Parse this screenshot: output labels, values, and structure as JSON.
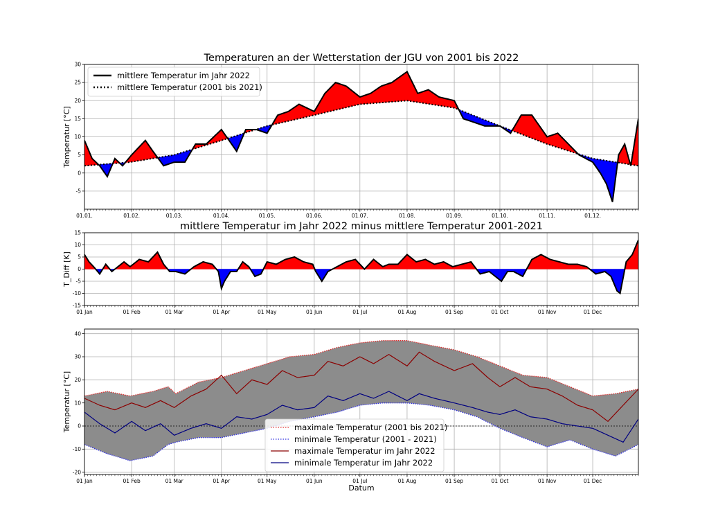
{
  "chart_data": [
    {
      "type": "line",
      "title": "Temperaturen an der Wetterstation der JGU von 2001 bis 2022",
      "ylabel": "Temperatur [°C]",
      "xlabel": "",
      "ylim": [
        -10,
        30
      ],
      "yticks": [
        -5,
        0,
        5,
        10,
        15,
        20,
        25,
        30
      ],
      "xticks": [
        {
          "day": 0,
          "label": "01.01."
        },
        {
          "day": 31,
          "label": "01.02."
        },
        {
          "day": 59,
          "label": "01.03."
        },
        {
          "day": 90,
          "label": "01.04."
        },
        {
          "day": 120,
          "label": "01.05."
        },
        {
          "day": 151,
          "label": "01.06."
        },
        {
          "day": 181,
          "label": "01.07."
        },
        {
          "day": 212,
          "label": "01.08."
        },
        {
          "day": 243,
          "label": "01.09."
        },
        {
          "day": 273,
          "label": "01.10."
        },
        {
          "day": 304,
          "label": "01.11."
        },
        {
          "day": 334,
          "label": "01.12."
        }
      ],
      "grid": true,
      "legend_position": "top-left",
      "fill_colors": {
        "above": "#ff0000",
        "below": "#0000ff"
      },
      "series": [
        {
          "name": "mittlere Temperatur im Jahr 2022",
          "style": "solid",
          "color": "#000000",
          "x": [
            0,
            5,
            10,
            15,
            20,
            25,
            31,
            40,
            45,
            52,
            59,
            66,
            73,
            80,
            90,
            100,
            106,
            113,
            120,
            127,
            134,
            141,
            151,
            158,
            165,
            172,
            181,
            188,
            195,
            202,
            212,
            219,
            226,
            233,
            243,
            249,
            256,
            263,
            273,
            280,
            287,
            294,
            304,
            311,
            318,
            325,
            334,
            339,
            343,
            347,
            351,
            355,
            359,
            364
          ],
          "y": [
            9,
            4,
            2,
            -1,
            4,
            2,
            5,
            9,
            6,
            2,
            3,
            3,
            8,
            8,
            12,
            6,
            12,
            12,
            11,
            16,
            17,
            19,
            17,
            22,
            25,
            24,
            21,
            22,
            24,
            25,
            28,
            22,
            23,
            21,
            20,
            15,
            14,
            13,
            13,
            11,
            16,
            16,
            10,
            11,
            8,
            5,
            3,
            0,
            -3,
            -8,
            5,
            8,
            2,
            15
          ]
        },
        {
          "name": "mittlere Temperatur (2001 bis 2021)",
          "style": "dotted",
          "color": "#000000",
          "x": [
            0,
            30,
            59,
            90,
            120,
            151,
            181,
            212,
            243,
            273,
            304,
            334,
            364
          ],
          "y": [
            2,
            3,
            5,
            9,
            13,
            16,
            19,
            20,
            18,
            13,
            8,
            4,
            2
          ]
        }
      ]
    },
    {
      "type": "area",
      "title": "mittlere Temperatur im Jahr 2022 minus mittlere Temperatur 2001-2021",
      "ylabel": "T_Diff [K]",
      "xlabel": "",
      "ylim": [
        -15,
        15
      ],
      "yticks": [
        -15,
        -10,
        -5,
        0,
        5,
        10,
        15
      ],
      "xticks": [
        {
          "day": 0,
          "label": "01 Jan"
        },
        {
          "day": 31,
          "label": "01 Feb"
        },
        {
          "day": 59,
          "label": "01 Mar"
        },
        {
          "day": 90,
          "label": "01 Apr"
        },
        {
          "day": 120,
          "label": "01 May"
        },
        {
          "day": 151,
          "label": "01 Jun"
        },
        {
          "day": 181,
          "label": "01 Jul"
        },
        {
          "day": 212,
          "label": "01 Aug"
        },
        {
          "day": 243,
          "label": "01 Sep"
        },
        {
          "day": 273,
          "label": "01 Oct"
        },
        {
          "day": 304,
          "label": "01 Nov"
        },
        {
          "day": 334,
          "label": "01 Dec"
        }
      ],
      "grid": true,
      "fill_colors": {
        "above": "#ff0000",
        "below": "#0000ff"
      },
      "series": [
        {
          "style": "solid",
          "color": "#000000",
          "x": [
            0,
            3,
            6,
            10,
            14,
            18,
            22,
            26,
            30,
            36,
            42,
            48,
            52,
            56,
            60,
            66,
            72,
            78,
            84,
            88,
            90,
            92,
            96,
            100,
            104,
            108,
            112,
            116,
            120,
            126,
            132,
            138,
            144,
            150,
            152,
            156,
            160,
            166,
            172,
            178,
            184,
            190,
            196,
            200,
            206,
            212,
            218,
            224,
            230,
            236,
            242,
            248,
            254,
            260,
            266,
            270,
            274,
            278,
            282,
            288,
            294,
            300,
            306,
            312,
            318,
            324,
            330,
            336,
            342,
            346,
            350,
            352,
            356,
            360,
            364
          ],
          "y": [
            6,
            3,
            1,
            -2,
            2,
            -1,
            1,
            3,
            1,
            4,
            3,
            7,
            2,
            -1,
            -1,
            -2,
            1,
            3,
            2,
            -1,
            -8,
            -5,
            -1,
            -1,
            3,
            1,
            -3,
            -2,
            3,
            2,
            4,
            5,
            3,
            2,
            -1,
            -5,
            -1,
            1,
            3,
            4,
            0,
            4,
            1,
            2,
            2,
            6,
            3,
            4,
            2,
            3,
            1,
            2,
            3,
            -2,
            -1,
            -3,
            -5,
            -1,
            -1,
            -3,
            4,
            6,
            4,
            3,
            2,
            2,
            1,
            -2,
            -1,
            -3,
            -9,
            -10,
            3,
            6,
            12
          ]
        }
      ]
    },
    {
      "type": "line",
      "title": "",
      "ylabel": "Temperatur [°C]",
      "xlabel": "Datum",
      "ylim": [
        -21,
        42
      ],
      "yticks": [
        -20,
        -10,
        0,
        10,
        20,
        30,
        40
      ],
      "xticks": [
        {
          "day": 0,
          "label": "01 Jan"
        },
        {
          "day": 31,
          "label": "01 Feb"
        },
        {
          "day": 59,
          "label": "01 Mar"
        },
        {
          "day": 90,
          "label": "01 Apr"
        },
        {
          "day": 120,
          "label": "01 May"
        },
        {
          "day": 151,
          "label": "01 Jun"
        },
        {
          "day": 181,
          "label": "01 Jul"
        },
        {
          "day": 212,
          "label": "01 Aug"
        },
        {
          "day": 243,
          "label": "01 Sep"
        },
        {
          "day": 273,
          "label": "01 Oct"
        },
        {
          "day": 304,
          "label": "01 Nov"
        },
        {
          "day": 334,
          "label": "01 Dec"
        }
      ],
      "grid": true,
      "legend_position": "lower-center",
      "band_fill_color": "#8c8c8c",
      "series": [
        {
          "name": "maximale Temperatur (2001 bis 2021)",
          "style": "dotted",
          "color": "#e03030",
          "x": [
            0,
            15,
            30,
            45,
            55,
            60,
            75,
            90,
            105,
            120,
            135,
            151,
            166,
            181,
            196,
            212,
            227,
            243,
            258,
            273,
            288,
            304,
            319,
            334,
            349,
            364
          ],
          "y": [
            13,
            15,
            13,
            15,
            17,
            14,
            19,
            21,
            24,
            27,
            30,
            31,
            34,
            36,
            37,
            37,
            35,
            33,
            30,
            26,
            22,
            21,
            17,
            13,
            14,
            16
          ]
        },
        {
          "name": "minimale Temperatur (2001 - 2021)",
          "style": "dotted",
          "color": "#3030e0",
          "x": [
            0,
            15,
            30,
            45,
            55,
            60,
            75,
            90,
            105,
            120,
            135,
            151,
            166,
            181,
            196,
            212,
            227,
            243,
            258,
            273,
            288,
            304,
            319,
            334,
            349,
            364
          ],
          "y": [
            -8,
            -12,
            -15,
            -13,
            -8,
            -7,
            -5,
            -5,
            -3,
            -1,
            2,
            4,
            6,
            9,
            10,
            10,
            9,
            7,
            4,
            -1,
            -5,
            -9,
            -6,
            -10,
            -13,
            -8
          ]
        },
        {
          "name": "maximale Temperatur im Jahr 2022",
          "style": "solid",
          "color": "#8b0000",
          "x": [
            0,
            10,
            20,
            31,
            40,
            50,
            59,
            70,
            80,
            90,
            100,
            110,
            120,
            130,
            140,
            151,
            160,
            170,
            181,
            190,
            200,
            212,
            220,
            230,
            243,
            255,
            265,
            273,
            283,
            293,
            304,
            314,
            324,
            334,
            344,
            354,
            364
          ],
          "y": [
            12,
            9,
            7,
            10,
            8,
            11,
            8,
            13,
            16,
            22,
            14,
            20,
            18,
            24,
            21,
            22,
            28,
            26,
            30,
            27,
            31,
            26,
            32,
            28,
            24,
            27,
            21,
            17,
            21,
            17,
            16,
            13,
            9,
            7,
            2,
            9,
            16
          ]
        },
        {
          "name": "minimale Temperatur im Jahr 2022",
          "style": "solid",
          "color": "#000080",
          "x": [
            0,
            10,
            20,
            31,
            40,
            50,
            59,
            70,
            80,
            90,
            100,
            110,
            120,
            130,
            140,
            151,
            160,
            170,
            181,
            190,
            200,
            212,
            220,
            230,
            243,
            255,
            265,
            273,
            283,
            293,
            304,
            314,
            324,
            334,
            344,
            354,
            364
          ],
          "y": [
            6,
            1,
            -3,
            2,
            -2,
            1,
            -4,
            -1,
            1,
            -1,
            4,
            3,
            5,
            9,
            7,
            8,
            13,
            11,
            14,
            12,
            15,
            11,
            14,
            12,
            10,
            8,
            6,
            5,
            7,
            4,
            3,
            1,
            0,
            -1,
            -4,
            -7,
            3
          ]
        }
      ]
    }
  ]
}
